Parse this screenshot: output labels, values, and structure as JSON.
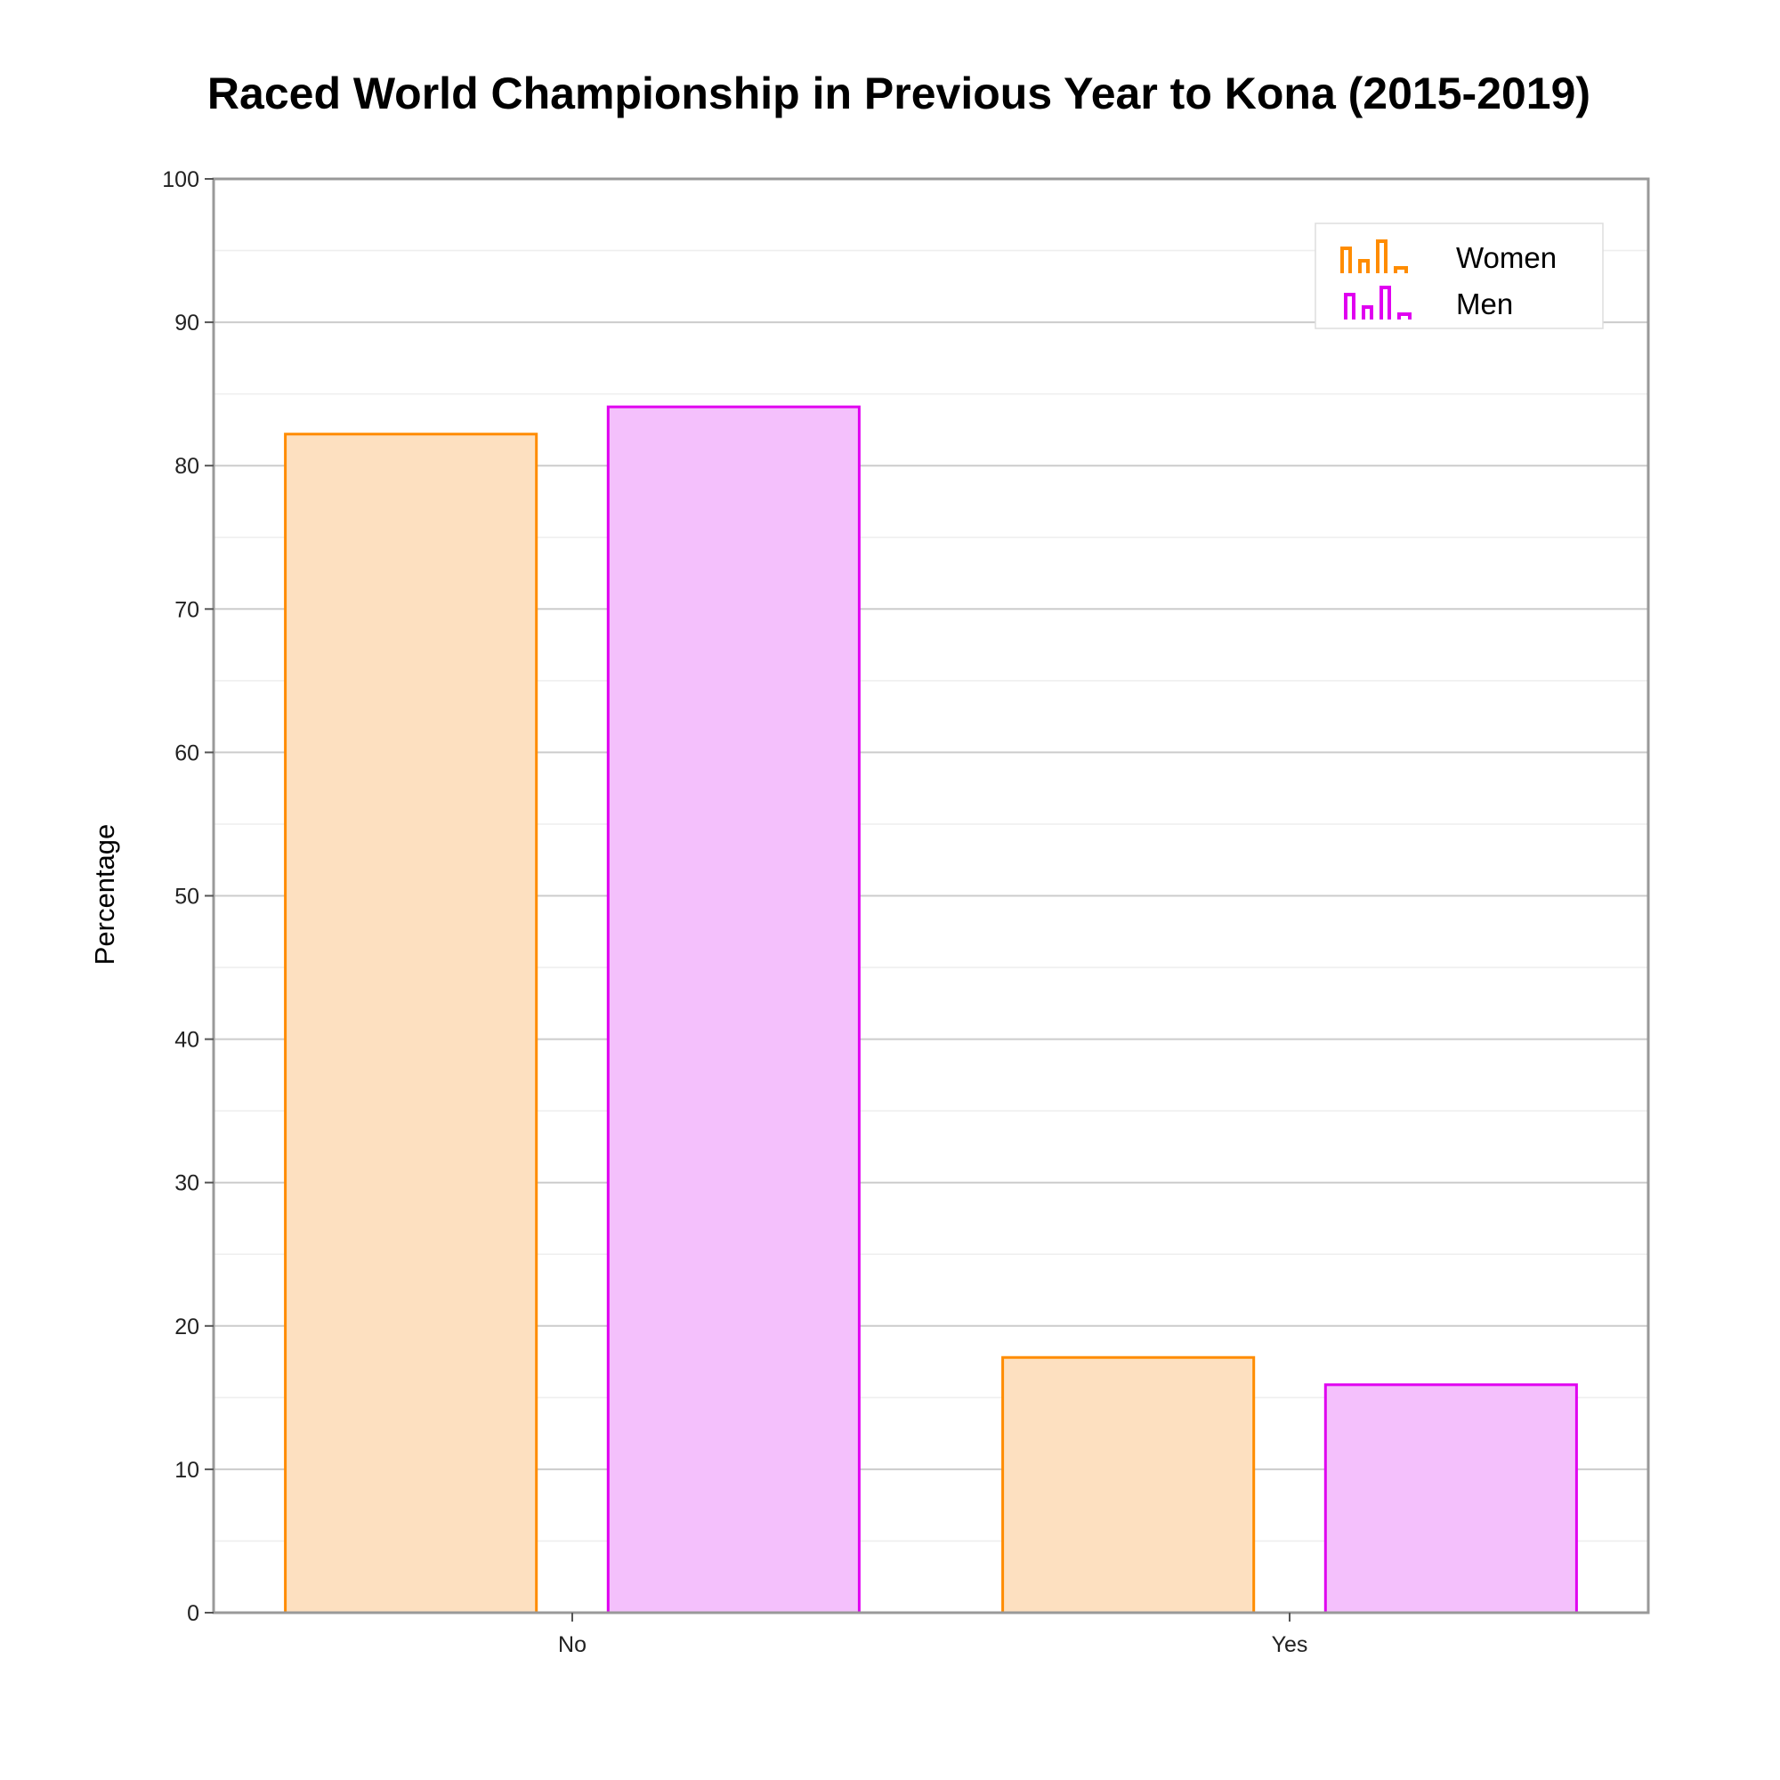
{
  "chart_data": {
    "type": "bar",
    "title": "Raced World Championship in Previous Year to Kona (2015-2019)",
    "xlabel": "",
    "ylabel": "Percentage",
    "categories": [
      "No",
      "Yes"
    ],
    "series": [
      {
        "name": "Women",
        "values": [
          82.2,
          17.8
        ],
        "stroke": "#ff8c00",
        "fill": "#fde0c0"
      },
      {
        "name": "Men",
        "values": [
          84.1,
          15.9
        ],
        "stroke": "#e000f0",
        "fill": "#f4c0fc"
      }
    ],
    "ylim": [
      0,
      100
    ],
    "yticks": [
      "0",
      "10",
      "20",
      "30",
      "40",
      "50",
      "60",
      "70",
      "80",
      "90",
      "100"
    ],
    "grid": true,
    "legend_position": "top-right",
    "colors": {
      "frame": "#999999",
      "major_grid": "#cccccc",
      "minor_grid": "#eeeeee"
    }
  }
}
